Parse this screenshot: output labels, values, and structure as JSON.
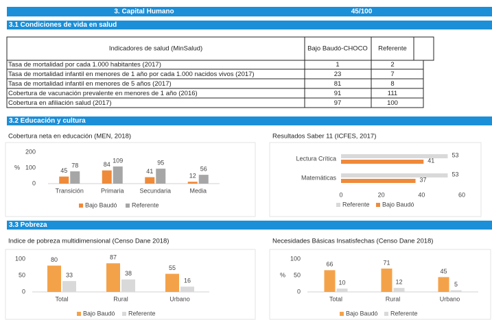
{
  "header": {
    "title": "3. Capital Humano",
    "score": "45/100"
  },
  "sections": [
    "3.1 Condiciones de vida en salud",
    "3.2  Educación y cultura",
    "3.3 Pobreza"
  ],
  "table": {
    "columns": [
      "Indicadores de salud (MinSalud)",
      "Bajo Baudó-CHOCO",
      "Referente"
    ],
    "rows": [
      [
        "Tasa de mortalidad por cada 1.000 habitantes (2017)",
        1,
        2
      ],
      [
        "Tasa de mortalidad infantil en menores de 1 año por cada 1.000 nacidos vivos (2017)",
        23,
        7
      ],
      [
        "Tasa de mortalidad infantil en menores de 5 años (2017)",
        81,
        8
      ],
      [
        "Cobertura de vacunación prevalente en menores de 1 año (2016)",
        91,
        111
      ],
      [
        "Cobertura en afiliación salud (2017)",
        97,
        100
      ]
    ]
  },
  "charts": [
    {
      "type": "bar",
      "title": "Cobertura neta en educación (MEN, 2018)",
      "y_label": "%",
      "categories": [
        "Transición",
        "Primaria",
        "Secundaria",
        "Media"
      ],
      "series": [
        {
          "name": "Bajo Baudó",
          "color": "#ef8a3a",
          "values": [
            45,
            84,
            41,
            12
          ]
        },
        {
          "name": "Referente",
          "color": "#a6a6a6",
          "values": [
            78,
            109,
            95,
            56
          ]
        }
      ],
      "ylim": [
        0,
        200
      ],
      "yticks": [
        0,
        100,
        200
      ]
    },
    {
      "type": "barh",
      "title": "Resultados Saber 11 (ICFES, 2017)",
      "categories": [
        "Lectura Crítica",
        "Matemáticas"
      ],
      "series": [
        {
          "name": "Referente",
          "color": "#d9d9d9",
          "values": [
            53,
            53
          ]
        },
        {
          "name": "Bajo Baudó",
          "color": "#ef8a3a",
          "values": [
            41,
            37
          ]
        }
      ],
      "xlim": [
        0,
        60
      ],
      "xticks": [
        0,
        20,
        40,
        60
      ]
    },
    {
      "type": "bar",
      "title": "Indice de pobreza multidimensional (Censo Dane 2018)",
      "categories": [
        "Total",
        "Rural",
        "Urbano"
      ],
      "series": [
        {
          "name": "Bajo Baudó",
          "color": "#f4a24a",
          "values": [
            80,
            87,
            55
          ]
        },
        {
          "name": "Referente",
          "color": "#d9d9d9",
          "values": [
            33,
            38,
            16
          ]
        }
      ],
      "ylim": [
        0,
        100
      ],
      "yticks": [
        0,
        50,
        100
      ]
    },
    {
      "type": "bar",
      "title": "Necesidades Básicas Insatisfechas (Censo Dane 2018)",
      "y_label": "%",
      "categories": [
        "Total",
        "Rural",
        "Urbano"
      ],
      "series": [
        {
          "name": "Bajo Baudó",
          "color": "#f4a24a",
          "values": [
            66,
            71,
            45
          ]
        },
        {
          "name": "Referente",
          "color": "#d9d9d9",
          "values": [
            10,
            12,
            5
          ]
        }
      ],
      "ylim": [
        0,
        100
      ],
      "yticks": [
        0,
        50,
        100
      ]
    }
  ]
}
